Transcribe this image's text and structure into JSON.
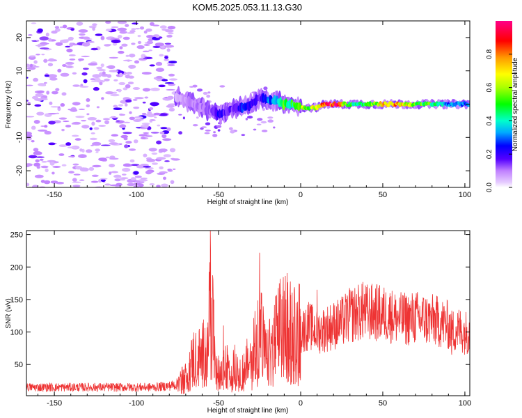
{
  "title": "KOM5.2025.053.11.13.G30",
  "chart_data": [
    {
      "type": "heatmap",
      "title": "KOM5.2025.053.11.13.G30",
      "xlabel": "Height of straight line (km)",
      "ylabel": "Frequency (Hz)",
      "xlim": [
        -167,
        103
      ],
      "ylim": [
        -25,
        25
      ],
      "xticks": [
        "-150",
        "-100",
        "-50",
        "0",
        "50",
        "100"
      ],
      "yticks": [
        "-20",
        "-10",
        "0",
        "10",
        "20"
      ],
      "colorbar": {
        "label": "Normalized spectral amplitude",
        "range": [
          0,
          1
        ],
        "ticks": [
          "0.0",
          "0.2",
          "0.4",
          "0.6",
          "0.8"
        ]
      },
      "ridge": {
        "note_free": true,
        "x": [
          -75,
          -70,
          -65,
          -60,
          -55,
          -50,
          -45,
          -40,
          -35,
          -30,
          -25,
          -20,
          -15,
          -10,
          -5,
          0,
          5,
          10,
          15,
          20,
          30,
          40,
          50,
          60,
          70,
          80,
          90,
          100
        ],
        "freq": [
          2,
          1,
          0,
          -1,
          -2,
          -3,
          -2,
          -1,
          -1,
          0,
          2,
          1,
          1,
          0,
          0,
          -1,
          -1,
          -1,
          0,
          0,
          0,
          0,
          0,
          0,
          0,
          0,
          0,
          0
        ],
        "amplitude": [
          0.05,
          0.08,
          0.1,
          0.1,
          0.12,
          0.22,
          0.15,
          0.15,
          0.25,
          0.2,
          0.15,
          0.3,
          0.35,
          0.5,
          0.45,
          0.6,
          0.55,
          0.7,
          0.85,
          0.95,
          0.45,
          0.5,
          0.7,
          0.75,
          0.5,
          0.5,
          0.3,
          0.3
        ]
      }
    },
    {
      "type": "line",
      "xlabel": "Height of straight line (km)",
      "ylabel": "SNR (v/v)",
      "xlim": [
        -167,
        103
      ],
      "ylim": [
        2,
        256
      ],
      "xticks": [
        "-150",
        "-100",
        "-50",
        "0",
        "50",
        "100"
      ],
      "yticks": [
        "50",
        "100",
        "150",
        "200",
        "250"
      ],
      "color": "#ee3333",
      "x": [
        -167,
        -150,
        -130,
        -110,
        -90,
        -80,
        -75,
        -70,
        -65,
        -60,
        -57,
        -55,
        -52,
        -50,
        -45,
        -40,
        -35,
        -30,
        -27,
        -25,
        -22,
        -20,
        -15,
        -10,
        -5,
        0,
        5,
        10,
        15,
        20,
        25,
        30,
        35,
        40,
        45,
        50,
        55,
        60,
        65,
        70,
        75,
        80,
        85,
        90,
        92,
        95,
        100,
        103
      ],
      "y": [
        15,
        15,
        15,
        15,
        15,
        17,
        20,
        30,
        60,
        60,
        90,
        140,
        60,
        35,
        45,
        45,
        40,
        60,
        90,
        120,
        65,
        60,
        90,
        110,
        100,
        100,
        110,
        100,
        105,
        110,
        115,
        125,
        130,
        130,
        130,
        128,
        125,
        120,
        120,
        122,
        120,
        118,
        115,
        110,
        100,
        105,
        100,
        100
      ],
      "peaks": {
        "x": [
          -55,
          -47,
          -25,
          -13,
          -6,
          10,
          30,
          38,
          48,
          55,
          92
        ],
        "y": [
          256,
          110,
          222,
          175,
          157,
          165,
          165,
          177,
          170,
          155,
          65
        ]
      }
    }
  ]
}
